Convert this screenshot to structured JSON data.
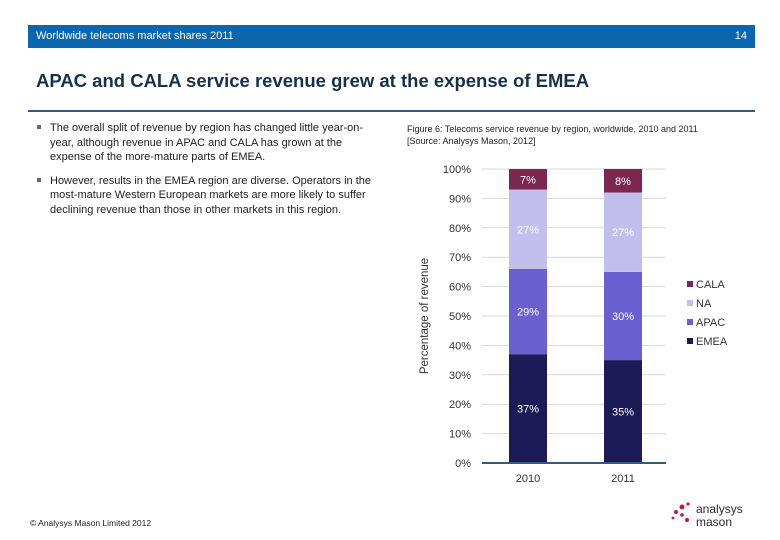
{
  "header": {
    "title": "Worldwide telecoms market shares 2011",
    "page": "14"
  },
  "slide_title": "APAC and CALA service revenue grew at the expense of EMEA",
  "bullets": [
    "The overall split of revenue by region has changed little year-on-year, although revenue in APAC and CALA has grown at the expense of the more-mature parts of EMEA.",
    "However, results in the EMEA region are diverse. Operators in the most-mature Western European markets are more likely to suffer declining revenue than those in other markets in this region."
  ],
  "figure": {
    "caption": "Figure 6: Telecoms service revenue by region, worldwide, 2010 and 2011",
    "source": "[Source: Analysys Mason, 2012]"
  },
  "footer": {
    "copyright": "© Analysys Mason Limited 2012"
  },
  "logo": {
    "text_line1": "analysys",
    "text_line2": "mason"
  },
  "chart_data": {
    "type": "bar",
    "stacked": true,
    "categories": [
      "2010",
      "2011"
    ],
    "ylabel": "Percentage of revenue",
    "xlabel": "",
    "ylim": [
      0,
      100
    ],
    "yticks": [
      "0%",
      "10%",
      "20%",
      "30%",
      "40%",
      "50%",
      "60%",
      "70%",
      "80%",
      "90%",
      "100%"
    ],
    "grid": true,
    "legend_position": "right",
    "series": [
      {
        "name": "EMEA",
        "color": "#1c1a57",
        "values": [
          37,
          35
        ]
      },
      {
        "name": "APAC",
        "color": "#6a5fd1",
        "values": [
          29,
          30
        ]
      },
      {
        "name": "NA",
        "color": "#c3bfec",
        "values": [
          27,
          27
        ]
      },
      {
        "name": "CALA",
        "color": "#7b2750",
        "values": [
          7,
          8
        ]
      }
    ]
  }
}
